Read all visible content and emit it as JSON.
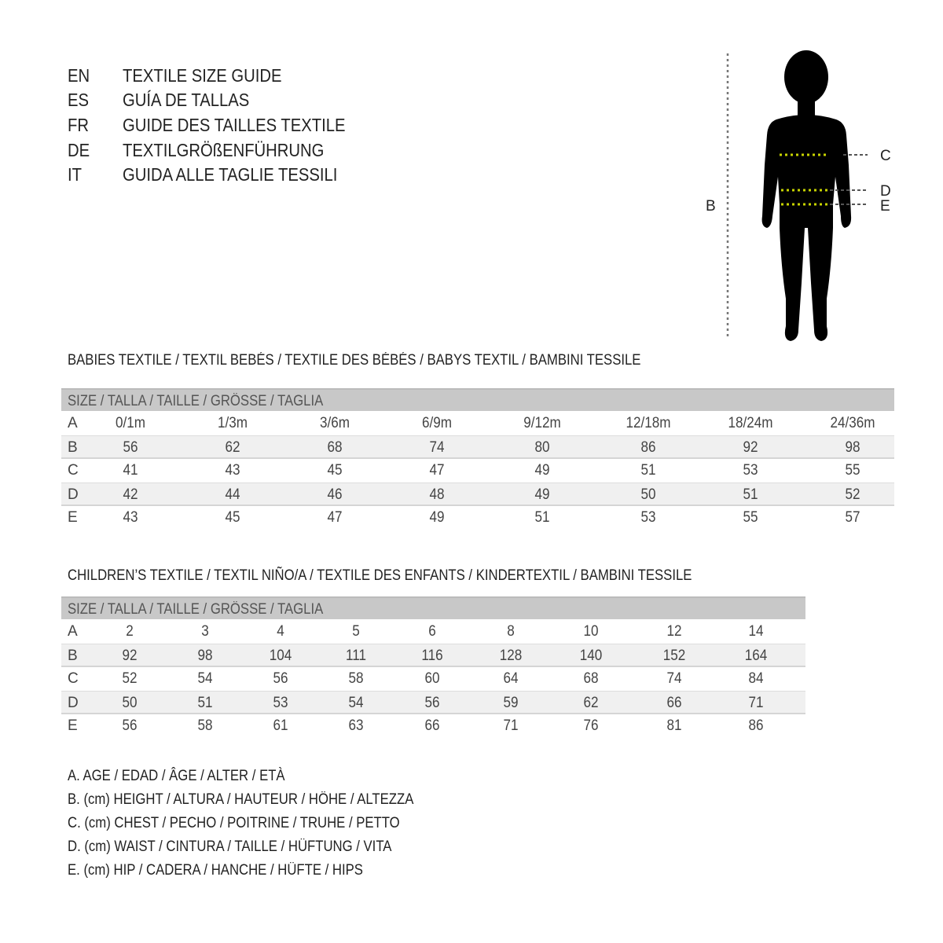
{
  "titles": [
    {
      "code": "EN",
      "text": "TEXTILE SIZE GUIDE"
    },
    {
      "code": "ES",
      "text": "GUÍA DE TALLAS"
    },
    {
      "code": "FR",
      "text": "GUIDE DES TAILLES TEXTILE"
    },
    {
      "code": "DE",
      "text": "TEXTILGRÖßENFÜHRUNG"
    },
    {
      "code": "IT",
      "text": "GUIDA ALLE TAGLIE TESSILI"
    }
  ],
  "figure": {
    "labels": {
      "height": "B",
      "chest": "C",
      "waist": "D",
      "hip": "E"
    },
    "marker_color": "#c8d400"
  },
  "babies": {
    "title": "BABIES TEXTILE / TEXTIL BEBÉS / TEXTILE DES BÉBÉS / BABYS TEXTIL  / BAMBINI TESSILE",
    "header": "SIZE / TALLA / TAILLE / GRÖSSE / TAGLIA",
    "rows": [
      {
        "label": "A",
        "values": [
          "0/1m",
          "1/3m",
          "3/6m",
          "6/9m",
          "9/12m",
          "12/18m",
          "18/24m",
          "24/36m"
        ]
      },
      {
        "label": "B",
        "values": [
          "56",
          "62",
          "68",
          "74",
          "80",
          "86",
          "92",
          "98"
        ]
      },
      {
        "label": "C",
        "values": [
          "41",
          "43",
          "45",
          "47",
          "49",
          "51",
          "53",
          "55"
        ]
      },
      {
        "label": "D",
        "values": [
          "42",
          "44",
          "46",
          "48",
          "49",
          "50",
          "51",
          "52"
        ]
      },
      {
        "label": "E",
        "values": [
          "43",
          "45",
          "47",
          "49",
          "51",
          "53",
          "55",
          "57"
        ]
      }
    ]
  },
  "children": {
    "title": "CHILDREN’S TEXTILE / TEXTIL NIÑO/A / TEXTILE DES ENFANTS / KINDERTEXTIL / BAMBINI TESSILE",
    "header": "SIZE / TALLA / TAILLE / GRÖSSE / TAGLIA",
    "rows": [
      {
        "label": "A",
        "values": [
          "2",
          "3",
          "4",
          "5",
          "6",
          "8",
          "10",
          "12",
          "14"
        ]
      },
      {
        "label": "B",
        "values": [
          "92",
          "98",
          "104",
          "111",
          "116",
          "128",
          "140",
          "152",
          "164"
        ]
      },
      {
        "label": "C",
        "values": [
          "52",
          "54",
          "56",
          "58",
          "60",
          "64",
          "68",
          "74",
          "84"
        ]
      },
      {
        "label": "D",
        "values": [
          "50",
          "51",
          "53",
          "54",
          "56",
          "59",
          "62",
          "66",
          "71"
        ]
      },
      {
        "label": "E",
        "values": [
          "56",
          "58",
          "61",
          "63",
          "66",
          "71",
          "76",
          "81",
          "86"
        ]
      }
    ]
  },
  "legend": [
    "A. AGE / EDAD / ÂGE / ALTER / ETÀ",
    "B. (cm) HEIGHT / ALTURA / HAUTEUR / HÖHE / ALTEZZA",
    "C. (cm) CHEST / PECHO / POITRINE / TRUHE / PETTO",
    "D. (cm) WAIST / CINTURA / TAILLE / HÜFTUNG / VITA",
    "E. (cm) HIP / CADERA / HANCHE / HÜFTE / HIPS"
  ]
}
